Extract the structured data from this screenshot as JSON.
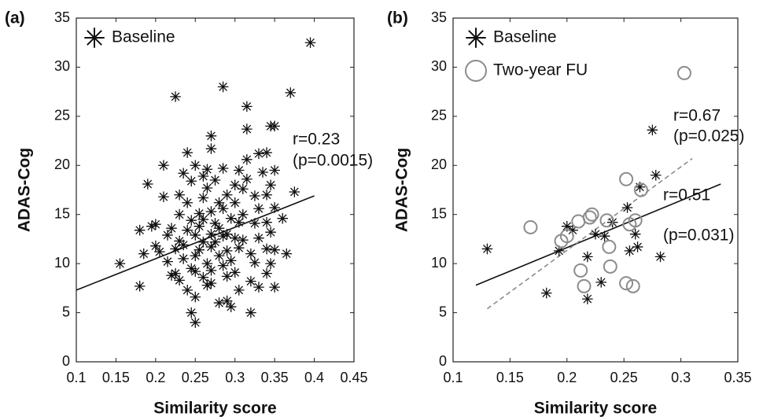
{
  "chart_data": [
    {
      "type": "scatter",
      "panel_label": "(a)",
      "x_label": "Similarity score",
      "y_label": "ADAS-Cog",
      "xlim": [
        0.1,
        0.45
      ],
      "xticks": [
        0.1,
        0.15,
        0.2,
        0.25,
        0.3,
        0.35,
        0.4,
        0.45
      ],
      "ylim": [
        0,
        35
      ],
      "yticks": [
        0,
        5,
        10,
        15,
        20,
        25,
        30,
        35
      ],
      "legend": "upper left",
      "annotations": [
        "r=0.23",
        "(p=0.0015)"
      ],
      "series": [
        {
          "name": "Baseline",
          "marker": "star",
          "color": "#111111",
          "x": [
            0.155,
            0.18,
            0.18,
            0.185,
            0.19,
            0.195,
            0.2,
            0.2,
            0.205,
            0.21,
            0.21,
            0.215,
            0.215,
            0.22,
            0.22,
            0.225,
            0.225,
            0.225,
            0.23,
            0.23,
            0.23,
            0.23,
            0.235,
            0.235,
            0.235,
            0.24,
            0.24,
            0.24,
            0.24,
            0.245,
            0.245,
            0.245,
            0.245,
            0.25,
            0.25,
            0.25,
            0.25,
            0.25,
            0.25,
            0.255,
            0.255,
            0.255,
            0.26,
            0.26,
            0.26,
            0.26,
            0.26,
            0.265,
            0.265,
            0.265,
            0.265,
            0.27,
            0.27,
            0.27,
            0.27,
            0.27,
            0.27,
            0.27,
            0.275,
            0.275,
            0.275,
            0.28,
            0.28,
            0.28,
            0.28,
            0.285,
            0.285,
            0.285,
            0.285,
            0.285,
            0.29,
            0.29,
            0.29,
            0.29,
            0.29,
            0.295,
            0.295,
            0.295,
            0.3,
            0.3,
            0.3,
            0.3,
            0.305,
            0.305,
            0.305,
            0.305,
            0.31,
            0.31,
            0.31,
            0.315,
            0.315,
            0.315,
            0.315,
            0.32,
            0.32,
            0.32,
            0.325,
            0.325,
            0.325,
            0.33,
            0.33,
            0.33,
            0.33,
            0.335,
            0.34,
            0.34,
            0.34,
            0.34,
            0.34,
            0.345,
            0.345,
            0.345,
            0.345,
            0.35,
            0.35,
            0.35,
            0.35,
            0.35,
            0.36,
            0.365,
            0.37,
            0.375,
            0.395
          ],
          "values": [
            10.0,
            7.7,
            13.4,
            11.0,
            18.1,
            13.8,
            11.8,
            14.0,
            11.2,
            20.0,
            16.8,
            12.9,
            10.2,
            8.8,
            13.6,
            27.0,
            9.0,
            11.5,
            12.3,
            17.0,
            8.3,
            15.0,
            19.2,
            11.9,
            10.5,
            21.3,
            16.2,
            13.4,
            7.3,
            14.4,
            9.5,
            5.0,
            18.4,
            20.0,
            12.9,
            10.8,
            9.2,
            6.6,
            4.0,
            15.1,
            13.8,
            11.4,
            18.9,
            16.7,
            14.5,
            12.2,
            8.6,
            19.6,
            17.7,
            10.0,
            7.8,
            23.0,
            21.7,
            15.3,
            13.0,
            11.7,
            9.3,
            8.0,
            18.5,
            14.1,
            12.2,
            16.2,
            13.6,
            10.8,
            6.0,
            28.0,
            19.7,
            15.6,
            12.8,
            9.8,
            17.0,
            13.0,
            11.3,
            8.7,
            6.2,
            14.6,
            10.3,
            5.6,
            18.0,
            16.2,
            12.6,
            9.1,
            19.5,
            14.2,
            11.6,
            7.3,
            17.6,
            15.0,
            12.4,
            26.0,
            23.7,
            20.6,
            18.6,
            11.0,
            8.2,
            5.0,
            16.9,
            14.1,
            10.1,
            21.2,
            15.6,
            12.6,
            7.6,
            19.3,
            21.3,
            17.0,
            14.2,
            11.5,
            9.0,
            24.0,
            18.0,
            13.2,
            10.0,
            24.0,
            19.5,
            15.7,
            11.4,
            7.6,
            14.6,
            11.0,
            27.4,
            17.3,
            32.5
          ]
        }
      ],
      "fit_lines": [
        {
          "x": [
            0.1,
            0.4
          ],
          "values": [
            7.3,
            16.9
          ],
          "color": "#111111",
          "style": "solid"
        }
      ]
    },
    {
      "type": "scatter",
      "panel_label": "(b)",
      "x_label": "Similarity score",
      "y_label": "ADAS-Cog",
      "xlim": [
        0.1,
        0.35
      ],
      "xticks": [
        0.1,
        0.15,
        0.2,
        0.25,
        0.3,
        0.35
      ],
      "ylim": [
        0,
        35
      ],
      "yticks": [
        0,
        5,
        10,
        15,
        20,
        25,
        30,
        35
      ],
      "legend": "upper left",
      "annotations": [
        "r=0.67",
        "(p=0.025)",
        "r=0.51",
        "(p=0.031)"
      ],
      "series": [
        {
          "name": "Baseline",
          "marker": "star",
          "color": "#111111",
          "x": [
            0.13,
            0.182,
            0.193,
            0.2,
            0.205,
            0.218,
            0.218,
            0.225,
            0.23,
            0.233,
            0.24,
            0.253,
            0.255,
            0.26,
            0.262,
            0.264,
            0.275,
            0.278,
            0.282
          ],
          "values": [
            11.5,
            7.0,
            11.3,
            13.8,
            13.4,
            10.7,
            6.4,
            13.0,
            8.1,
            12.8,
            14.2,
            15.7,
            11.3,
            13.0,
            11.7,
            17.8,
            23.6,
            19.0,
            10.7
          ]
        },
        {
          "name": "Two-year FU",
          "marker": "circle",
          "color": "#8c8c8c",
          "x": [
            0.168,
            0.195,
            0.2,
            0.21,
            0.212,
            0.215,
            0.22,
            0.222,
            0.235,
            0.237,
            0.238,
            0.252,
            0.252,
            0.255,
            0.258,
            0.26,
            0.265,
            0.303
          ],
          "values": [
            13.7,
            12.3,
            12.8,
            14.3,
            9.3,
            7.7,
            14.7,
            15.0,
            14.4,
            11.7,
            9.7,
            18.6,
            8.0,
            14.0,
            7.7,
            14.4,
            17.5,
            29.4
          ]
        }
      ],
      "fit_lines": [
        {
          "x": [
            0.12,
            0.335
          ],
          "values": [
            7.8,
            18.1
          ],
          "color": "#111111",
          "style": "solid"
        },
        {
          "x": [
            0.13,
            0.31
          ],
          "values": [
            5.4,
            20.7
          ],
          "color": "#8c8c8c",
          "style": "dashed"
        }
      ]
    }
  ]
}
